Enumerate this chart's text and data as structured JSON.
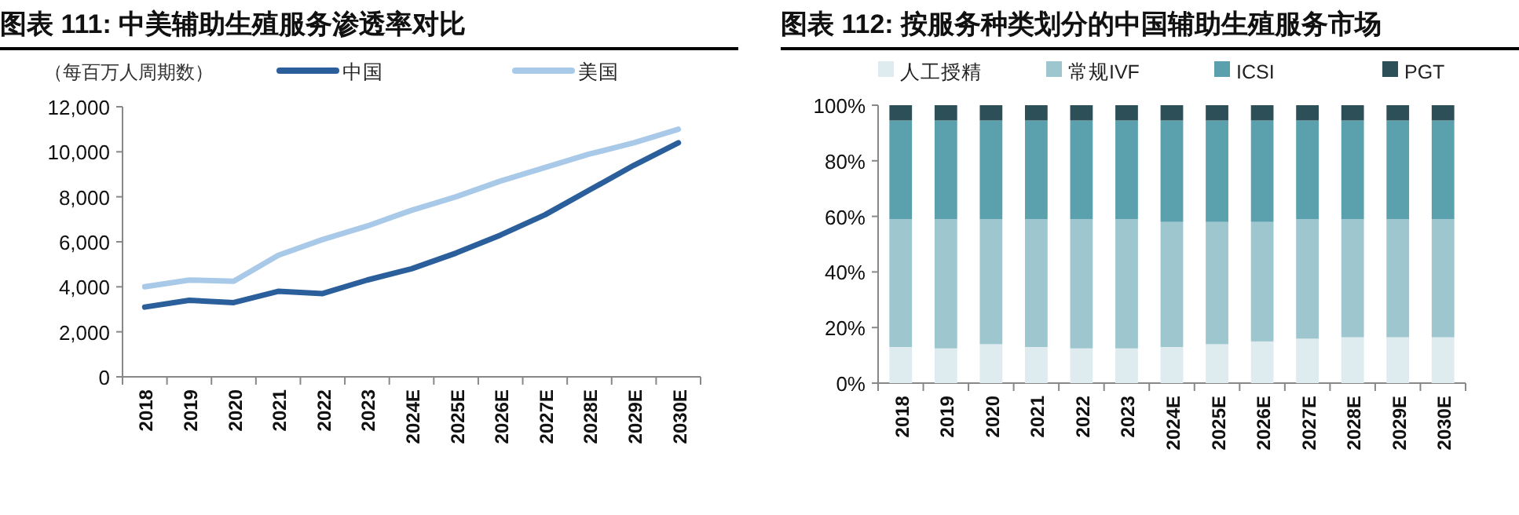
{
  "chart_data": [
    {
      "type": "line",
      "title": "图表 111: 中美辅助生殖服务渗透率对比",
      "ylabel": "（每百万人周期数）",
      "categories": [
        "2018",
        "2019",
        "2020",
        "2021",
        "2022",
        "2023",
        "2024E",
        "2025E",
        "2026E",
        "2027E",
        "2028E",
        "2029E",
        "2030E"
      ],
      "series": [
        {
          "name": "中国",
          "color": "#2a5f9c",
          "values": [
            3100,
            3400,
            3300,
            3800,
            3700,
            4300,
            4800,
            5500,
            6300,
            7200,
            8300,
            9400,
            10400
          ]
        },
        {
          "name": "美国",
          "color": "#a9c9e8",
          "values": [
            4000,
            4300,
            4250,
            5400,
            6100,
            6700,
            7400,
            8000,
            8700,
            9300,
            9900,
            10400,
            11000
          ]
        }
      ],
      "ylim": [
        0,
        12000
      ],
      "yticks": [
        {
          "value": 0,
          "label": "0"
        },
        {
          "value": 2000,
          "label": "2,000"
        },
        {
          "value": 4000,
          "label": "4,000"
        },
        {
          "value": 6000,
          "label": "6,000"
        },
        {
          "value": 8000,
          "label": "8,000"
        },
        {
          "value": 10000,
          "label": "10,000"
        },
        {
          "value": 12000,
          "label": "12,000"
        }
      ],
      "legend": "top",
      "marker": "none",
      "line_style": "solid"
    },
    {
      "type": "bar",
      "stacked": true,
      "title": "图表 112: 按服务种类划分的中国辅助生殖服务市场",
      "categories": [
        "2018",
        "2019",
        "2020",
        "2021",
        "2022",
        "2023",
        "2024E",
        "2025E",
        "2026E",
        "2027E",
        "2028E",
        "2029E",
        "2030E"
      ],
      "series": [
        {
          "name": "人工授精",
          "color": "#deebef",
          "values": [
            13,
            12.5,
            14,
            13,
            12.5,
            12.5,
            13,
            14,
            15,
            16,
            16.5,
            16.5,
            16.5
          ]
        },
        {
          "name": "常规IVF",
          "color": "#9dc6cf",
          "values": [
            46,
            46.5,
            45,
            46,
            46.5,
            46.5,
            45,
            44,
            43,
            43,
            42.5,
            42.5,
            42.5
          ]
        },
        {
          "name": "ICSI",
          "color": "#5aa0ad",
          "values": [
            35.5,
            35.5,
            35.5,
            35.5,
            35.5,
            35.5,
            36.5,
            36.5,
            36.5,
            35.5,
            35.5,
            35.5,
            35.5
          ]
        },
        {
          "name": "PGT",
          "color": "#2c4f58",
          "values": [
            5.5,
            5.5,
            5.5,
            5.5,
            5.5,
            5.5,
            5.5,
            5.5,
            5.5,
            5.5,
            5.5,
            5.5,
            5.5
          ]
        }
      ],
      "ylim": [
        0,
        100
      ],
      "yticks": [
        {
          "value": 0,
          "label": "0%"
        },
        {
          "value": 20,
          "label": "20%"
        },
        {
          "value": 40,
          "label": "40%"
        },
        {
          "value": 60,
          "label": "60%"
        },
        {
          "value": 80,
          "label": "80%"
        },
        {
          "value": 100,
          "label": "100%"
        }
      ],
      "legend": "top"
    }
  ]
}
